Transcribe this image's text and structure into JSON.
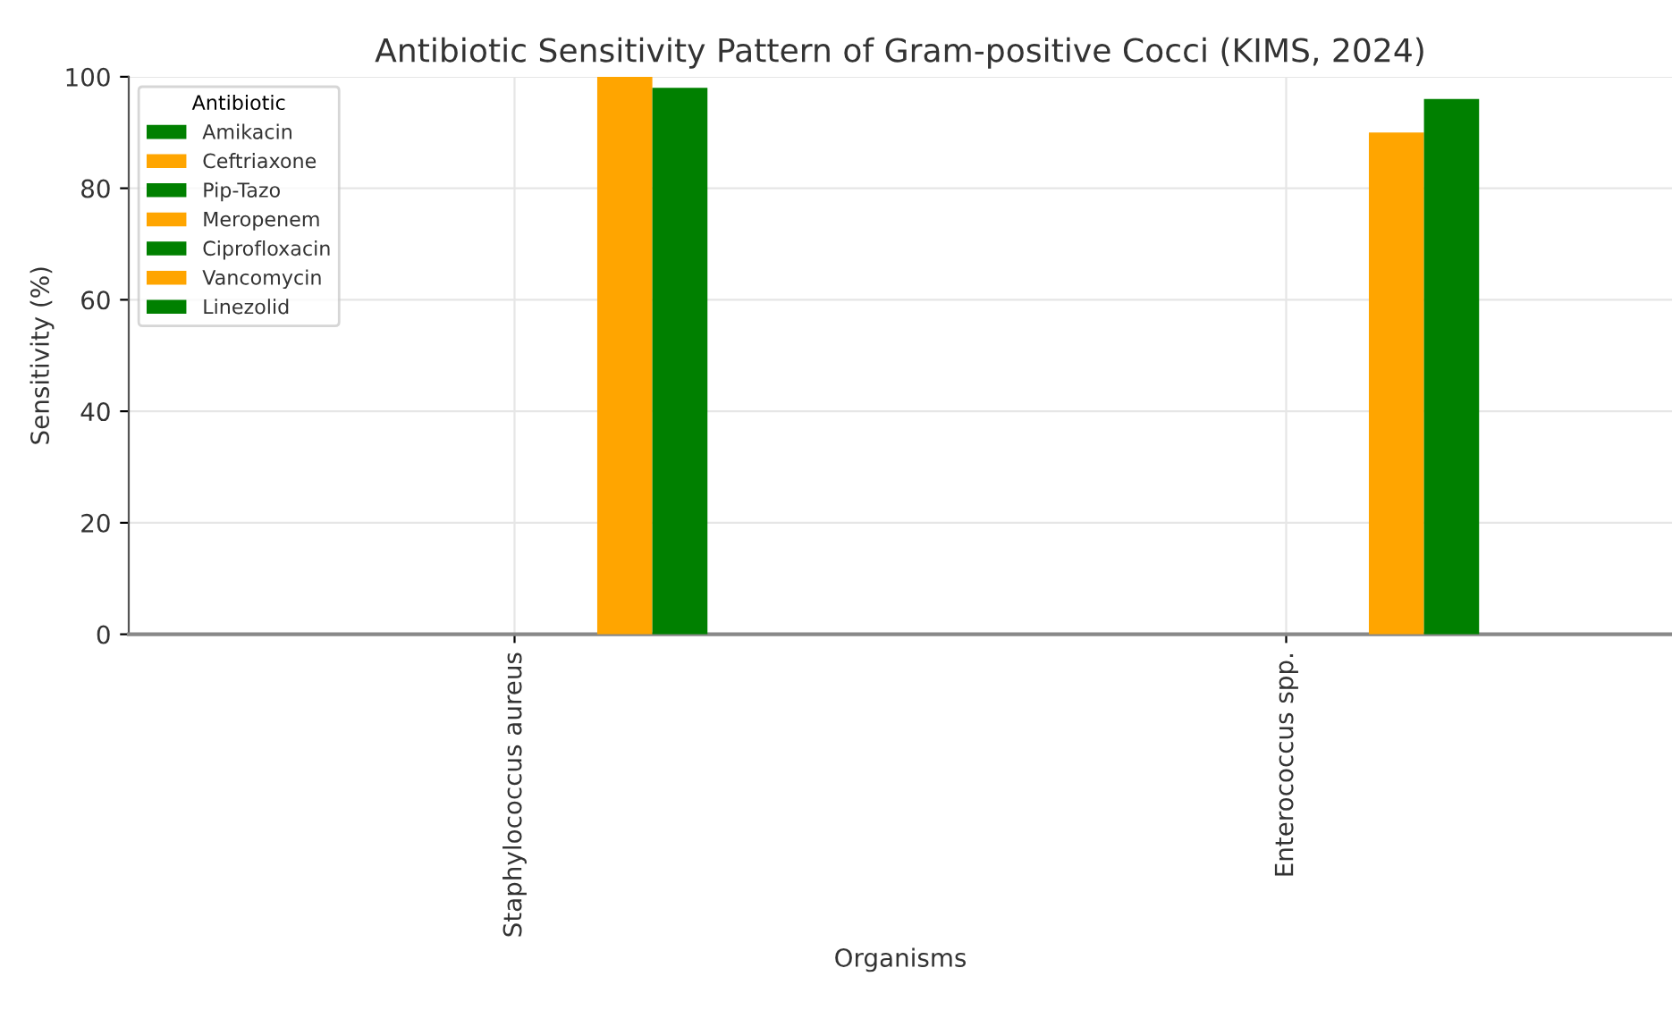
{
  "chart_data": {
    "type": "bar",
    "title": "Antibiotic Sensitivity Pattern of Gram-positive Cocci (KIMS, 2024)",
    "xlabel": "Organisms",
    "ylabel": "Sensitivity (%)",
    "legend_title": "Antibiotic",
    "categories": [
      "Staphylococcus aureus",
      "Enterococcus spp."
    ],
    "series": [
      {
        "name": "Amikacin",
        "color": "#008000",
        "values": [
          null,
          null
        ]
      },
      {
        "name": "Ceftriaxone",
        "color": "#ffa500",
        "values": [
          null,
          null
        ]
      },
      {
        "name": "Pip-Tazo",
        "color": "#008000",
        "values": [
          null,
          null
        ]
      },
      {
        "name": "Meropenem",
        "color": "#ffa500",
        "values": [
          null,
          null
        ]
      },
      {
        "name": "Ciprofloxacin",
        "color": "#008000",
        "values": [
          null,
          null
        ]
      },
      {
        "name": "Vancomycin",
        "color": "#ffa500",
        "values": [
          100,
          90
        ]
      },
      {
        "name": "Linezolid",
        "color": "#008000",
        "values": [
          98,
          96
        ]
      }
    ],
    "ylim": [
      0,
      100
    ],
    "yticks": [
      0,
      20,
      40,
      60,
      80,
      100
    ],
    "grid": true,
    "legend": "top left"
  }
}
